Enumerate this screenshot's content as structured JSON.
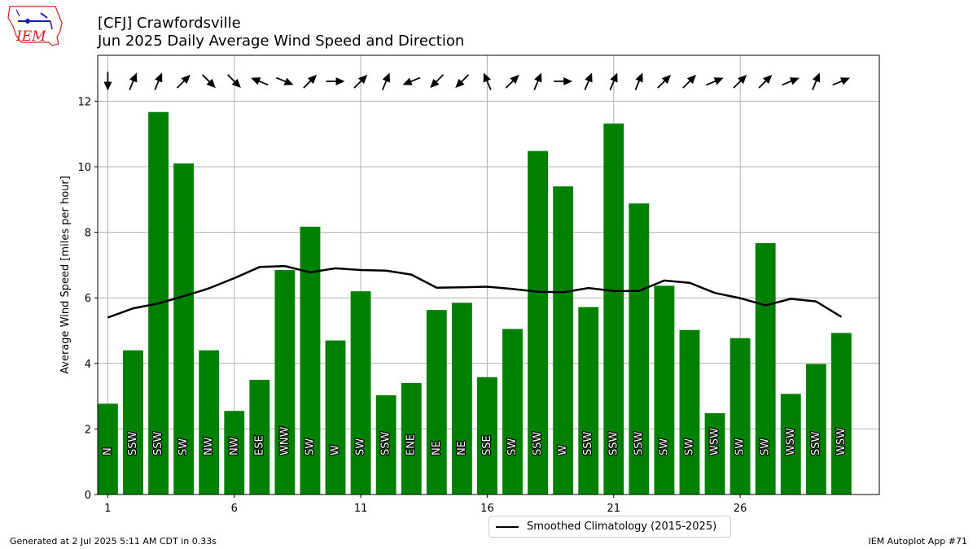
{
  "header": {
    "title_line1": "[CFJ] Crawfordsville",
    "title_line2": "Jun 2025 Daily Average Wind Speed and Direction",
    "logo_text": "IEM"
  },
  "footer": {
    "generated": "Generated at 2 Jul 2025 5:11 AM CDT in 0.33s",
    "app": "IEM Autoplot App #71"
  },
  "colors": {
    "bar": "#008000",
    "line": "#000000",
    "grid": "#b0b0b0",
    "logo_red": "#cc2222",
    "logo_blue": "#1a1ab0"
  },
  "chart_data": {
    "type": "bar",
    "ylabel": "Average Wind Speed [miles per hour]",
    "xlabel": "",
    "ylim": [
      0,
      13.4
    ],
    "xlim": [
      0.6,
      31.5
    ],
    "yticks": [
      0,
      2,
      4,
      6,
      8,
      10,
      12
    ],
    "xticks": [
      1,
      6,
      11,
      16,
      21,
      26
    ],
    "grid": true,
    "legend_position": "bottom-center",
    "days": [
      1,
      2,
      3,
      4,
      5,
      6,
      7,
      8,
      9,
      10,
      11,
      12,
      13,
      14,
      15,
      16,
      17,
      18,
      19,
      20,
      21,
      22,
      23,
      24,
      25,
      26,
      27,
      28,
      29,
      30
    ],
    "values": [
      2.77,
      4.4,
      11.67,
      10.1,
      4.4,
      2.55,
      3.5,
      6.85,
      8.17,
      4.7,
      6.2,
      3.03,
      3.4,
      5.63,
      5.85,
      3.58,
      5.05,
      10.48,
      9.4,
      5.72,
      11.32,
      8.88,
      6.37,
      5.02,
      2.48,
      4.77,
      7.67,
      3.07,
      3.98,
      4.93
    ],
    "directions": [
      "N",
      "SSW",
      "SSW",
      "SW",
      "NW",
      "NW",
      "ESE",
      "WNW",
      "SW",
      "W",
      "SW",
      "SSW",
      "ENE",
      "NE",
      "NE",
      "SSE",
      "SW",
      "SSW",
      "W",
      "SSW",
      "SSW",
      "SSW",
      "SW",
      "SW",
      "WSW",
      "SW",
      "SW",
      "WSW",
      "SSW",
      "WSW"
    ],
    "series": [
      {
        "name": "Smoothed Climatology (2015-2025)",
        "values": [
          5.4,
          5.68,
          5.83,
          6.05,
          6.29,
          6.6,
          6.94,
          6.97,
          6.78,
          6.9,
          6.85,
          6.83,
          6.71,
          6.31,
          6.32,
          6.34,
          6.27,
          6.19,
          6.17,
          6.3,
          6.21,
          6.21,
          6.53,
          6.46,
          6.15,
          5.99,
          5.77,
          5.97,
          5.89,
          5.42
        ]
      }
    ]
  }
}
